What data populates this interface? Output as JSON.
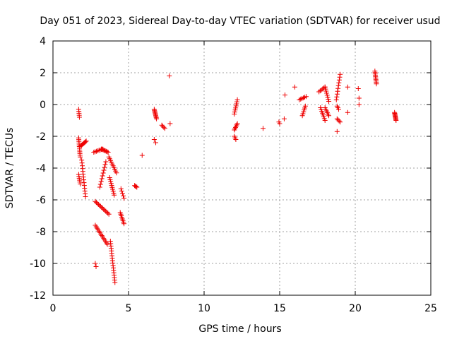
{
  "chart_data": {
    "type": "scatter",
    "title": "Day 051 of 2023, Sidereal Day-to-day VTEC variation (SDTVAR) for receiver usud",
    "xlabel": "GPS time / hours",
    "ylabel": "SDTVAR / TECUs",
    "xlim": [
      0,
      25
    ],
    "ylim": [
      -12,
      4
    ],
    "xticks": [
      0,
      5,
      10,
      15,
      20,
      25
    ],
    "yticks": [
      -12,
      -10,
      -8,
      -6,
      -4,
      -2,
      0,
      2,
      4
    ],
    "grid": true,
    "marker": "+",
    "color": "#ee0000",
    "segments": [
      {
        "x0": 1.7,
        "x1": 1.75,
        "y0": -0.3,
        "y1": -0.8,
        "n": 5
      },
      {
        "x0": 1.7,
        "x1": 1.8,
        "y0": -2.1,
        "y1": -3.3,
        "n": 12
      },
      {
        "x0": 1.7,
        "x1": 1.8,
        "y0": -4.4,
        "y1": -5.0,
        "n": 6
      },
      {
        "x0": 1.85,
        "x1": 2.2,
        "y0": -2.6,
        "y1": -2.3,
        "n": 8
      },
      {
        "x0": 1.9,
        "x1": 2.15,
        "y0": -3.5,
        "y1": -5.8,
        "n": 14
      },
      {
        "x0": 2.7,
        "x1": 3.3,
        "y0": -3.0,
        "y1": -2.8,
        "n": 8
      },
      {
        "x0": 3.2,
        "x1": 3.65,
        "y0": -2.8,
        "y1": -3.0,
        "n": 8
      },
      {
        "x0": 2.8,
        "x1": 3.7,
        "y0": -6.1,
        "y1": -6.9,
        "n": 14
      },
      {
        "x0": 3.1,
        "x1": 3.5,
        "y0": -5.2,
        "y1": -3.6,
        "n": 10
      },
      {
        "x0": 2.8,
        "x1": 3.6,
        "y0": -7.6,
        "y1": -8.8,
        "n": 14
      },
      {
        "x0": 2.8,
        "x1": 2.85,
        "y0": -10.0,
        "y1": -10.2,
        "n": 2
      },
      {
        "x0": 3.7,
        "x1": 4.2,
        "y0": -3.3,
        "y1": -4.3,
        "n": 10
      },
      {
        "x0": 3.75,
        "x1": 4.05,
        "y0": -4.6,
        "y1": -5.7,
        "n": 10
      },
      {
        "x0": 3.8,
        "x1": 4.1,
        "y0": -8.6,
        "y1": -11.2,
        "n": 18
      },
      {
        "x0": 4.5,
        "x1": 4.7,
        "y0": -5.3,
        "y1": -5.9,
        "n": 5
      },
      {
        "x0": 4.45,
        "x1": 4.7,
        "y0": -6.8,
        "y1": -7.5,
        "n": 8
      },
      {
        "x0": 5.4,
        "x1": 5.55,
        "y0": -5.1,
        "y1": -5.2,
        "n": 4
      },
      {
        "x0": 5.9,
        "x1": 5.9,
        "y0": -3.2,
        "y1": -3.2,
        "n": 1
      },
      {
        "x0": 6.7,
        "x1": 6.85,
        "y0": -0.3,
        "y1": -0.9,
        "n": 10
      },
      {
        "x0": 6.7,
        "x1": 6.8,
        "y0": -2.2,
        "y1": -2.4,
        "n": 2
      },
      {
        "x0": 7.2,
        "x1": 7.4,
        "y0": -1.3,
        "y1": -1.5,
        "n": 4
      },
      {
        "x0": 7.7,
        "x1": 7.75,
        "y0": 1.8,
        "y1": -1.2,
        "n": 2
      },
      {
        "x0": 12.0,
        "x1": 12.2,
        "y0": -1.6,
        "y1": -1.2,
        "n": 6
      },
      {
        "x0": 12.0,
        "x1": 12.2,
        "y0": -0.6,
        "y1": 0.3,
        "n": 8
      },
      {
        "x0": 12.0,
        "x1": 12.1,
        "y0": -2.0,
        "y1": -2.2,
        "n": 3
      },
      {
        "x0": 13.9,
        "x1": 13.9,
        "y0": -1.5,
        "y1": -1.5,
        "n": 1
      },
      {
        "x0": 14.95,
        "x1": 15.0,
        "y0": -1.1,
        "y1": -1.2,
        "n": 2
      },
      {
        "x0": 15.3,
        "x1": 15.35,
        "y0": -0.9,
        "y1": 0.6,
        "n": 2
      },
      {
        "x0": 16.0,
        "x1": 16.0,
        "y0": 1.1,
        "y1": 1.1,
        "n": 1
      },
      {
        "x0": 16.3,
        "x1": 16.75,
        "y0": 0.3,
        "y1": 0.5,
        "n": 6
      },
      {
        "x0": 16.5,
        "x1": 16.7,
        "y0": -0.7,
        "y1": -0.1,
        "n": 6
      },
      {
        "x0": 17.6,
        "x1": 18.0,
        "y0": 0.8,
        "y1": 1.1,
        "n": 6
      },
      {
        "x0": 17.7,
        "x1": 18.0,
        "y0": -0.2,
        "y1": -1.0,
        "n": 8
      },
      {
        "x0": 18.0,
        "x1": 18.25,
        "y0": 1.1,
        "y1": 0.2,
        "n": 8
      },
      {
        "x0": 18.0,
        "x1": 18.25,
        "y0": -0.2,
        "y1": -0.7,
        "n": 6
      },
      {
        "x0": 18.75,
        "x1": 19.0,
        "y0": 0.3,
        "y1": 1.9,
        "n": 10
      },
      {
        "x0": 18.8,
        "x1": 19.0,
        "y0": -0.9,
        "y1": -1.1,
        "n": 4
      },
      {
        "x0": 18.8,
        "x1": 18.9,
        "y0": -0.1,
        "y1": -0.3,
        "n": 3
      },
      {
        "x0": 18.8,
        "x1": 18.8,
        "y0": -1.7,
        "y1": -1.7,
        "n": 1
      },
      {
        "x0": 19.5,
        "x1": 19.5,
        "y0": 1.1,
        "y1": 1.1,
        "n": 1
      },
      {
        "x0": 19.5,
        "x1": 19.5,
        "y0": -0.5,
        "y1": -0.5,
        "n": 1
      },
      {
        "x0": 20.2,
        "x1": 20.25,
        "y0": 1.0,
        "y1": 0.4,
        "n": 2
      },
      {
        "x0": 20.25,
        "x1": 20.25,
        "y0": 0.0,
        "y1": 0.0,
        "n": 1
      },
      {
        "x0": 21.3,
        "x1": 21.4,
        "y0": 2.1,
        "y1": 1.3,
        "n": 10
      },
      {
        "x0": 22.6,
        "x1": 22.7,
        "y0": -0.5,
        "y1": -1.0,
        "n": 10
      }
    ]
  }
}
